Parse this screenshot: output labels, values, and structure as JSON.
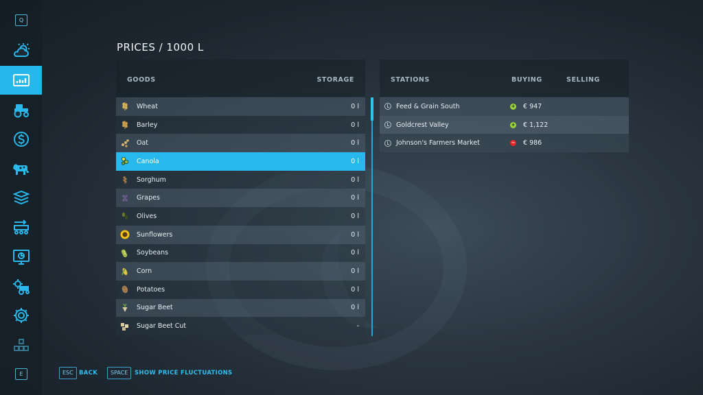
{
  "sidebar": {
    "top_key": "Q",
    "bottom_key": "E",
    "items": [
      {
        "icon": "weather-icon"
      },
      {
        "icon": "prices-chart-icon",
        "active": true
      },
      {
        "icon": "vehicles-icon"
      },
      {
        "icon": "finances-icon"
      },
      {
        "icon": "animals-icon"
      },
      {
        "icon": "contracts-icon"
      },
      {
        "icon": "production-icon"
      },
      {
        "icon": "statistics-icon"
      },
      {
        "icon": "garage-icon"
      },
      {
        "icon": "settings-icon"
      },
      {
        "icon": "help-icon"
      }
    ]
  },
  "title": "PRICES / 1000 L",
  "goods_panel": {
    "col_goods": "GOODS",
    "col_storage": "STORAGE",
    "rows": [
      {
        "name": "Wheat",
        "storage": "0 l"
      },
      {
        "name": "Barley",
        "storage": "0 l"
      },
      {
        "name": "Oat",
        "storage": "0 l"
      },
      {
        "name": "Canola",
        "storage": "0 l",
        "selected": true
      },
      {
        "name": "Sorghum",
        "storage": "0 l"
      },
      {
        "name": "Grapes",
        "storage": "0 l"
      },
      {
        "name": "Olives",
        "storage": "0 l"
      },
      {
        "name": "Sunflowers",
        "storage": "0 l"
      },
      {
        "name": "Soybeans",
        "storage": "0 l"
      },
      {
        "name": "Corn",
        "storage": "0 l"
      },
      {
        "name": "Potatoes",
        "storage": "0 l"
      },
      {
        "name": "Sugar Beet",
        "storage": "0 l"
      },
      {
        "name": "Sugar Beet Cut",
        "storage": "-"
      }
    ]
  },
  "stations_panel": {
    "col_stations": "STATIONS",
    "col_buying": "BUYING",
    "col_selling": "SELLING",
    "rows": [
      {
        "name": "Feed & Grain South",
        "trend": "up",
        "price": "€ 947"
      },
      {
        "name": "Goldcrest Valley",
        "trend": "up",
        "price": "€ 1,122"
      },
      {
        "name": "Johnson's Farmers Market",
        "trend": "down",
        "price": "€ 986"
      }
    ]
  },
  "footer": {
    "back_key": "ESC",
    "back_label": "BACK",
    "fluct_key": "SPACE",
    "fluct_label": "SHOW PRICE FLUCTUATIONS"
  },
  "colors": {
    "accent": "#27b9eb",
    "trend_up": "#9bd43a",
    "trend_down": "#e0262d"
  }
}
